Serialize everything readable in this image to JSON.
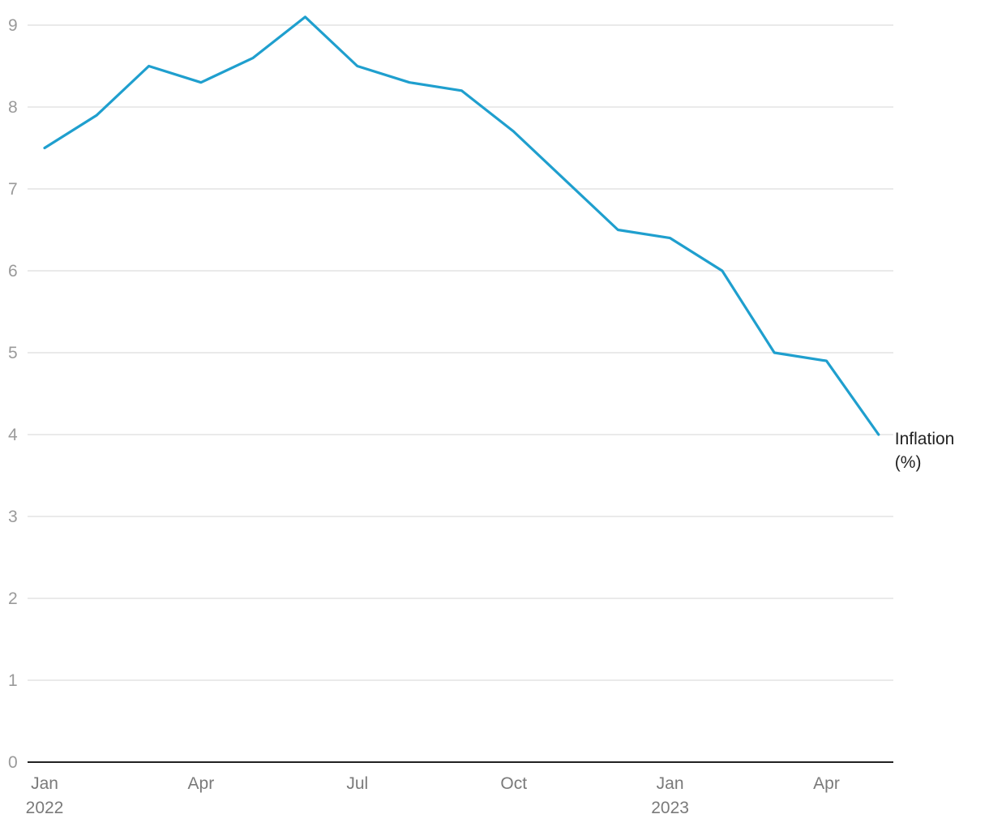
{
  "chart_data": {
    "type": "line",
    "x": [
      "2022-01",
      "2022-02",
      "2022-03",
      "2022-04",
      "2022-05",
      "2022-06",
      "2022-07",
      "2022-08",
      "2022-09",
      "2022-10",
      "2022-11",
      "2022-12",
      "2023-01",
      "2023-02",
      "2023-03",
      "2023-04",
      "2023-05"
    ],
    "series": [
      {
        "name": "Inflation (%)",
        "label_lines": [
          "Inflation",
          "(%)"
        ],
        "color": "#1f9fce",
        "values": [
          7.5,
          7.9,
          8.5,
          8.3,
          8.6,
          9.1,
          8.5,
          8.3,
          8.2,
          7.7,
          7.1,
          6.5,
          6.4,
          6.0,
          5.0,
          4.9,
          4.0
        ]
      }
    ],
    "ylim": [
      0,
      9
    ],
    "yticks": [
      "0",
      "1",
      "2",
      "3",
      "4",
      "5",
      "6",
      "7",
      "8",
      "9"
    ],
    "xticks": [
      {
        "at": "2022-01",
        "label": "Jan",
        "sub": "2022"
      },
      {
        "at": "2022-04",
        "label": "Apr",
        "sub": ""
      },
      {
        "at": "2022-07",
        "label": "Jul",
        "sub": ""
      },
      {
        "at": "2022-10",
        "label": "Oct",
        "sub": ""
      },
      {
        "at": "2023-01",
        "label": "Jan",
        "sub": "2023"
      },
      {
        "at": "2023-04",
        "label": "Apr",
        "sub": ""
      }
    ],
    "grid": true,
    "legend": "end-of-line label"
  }
}
